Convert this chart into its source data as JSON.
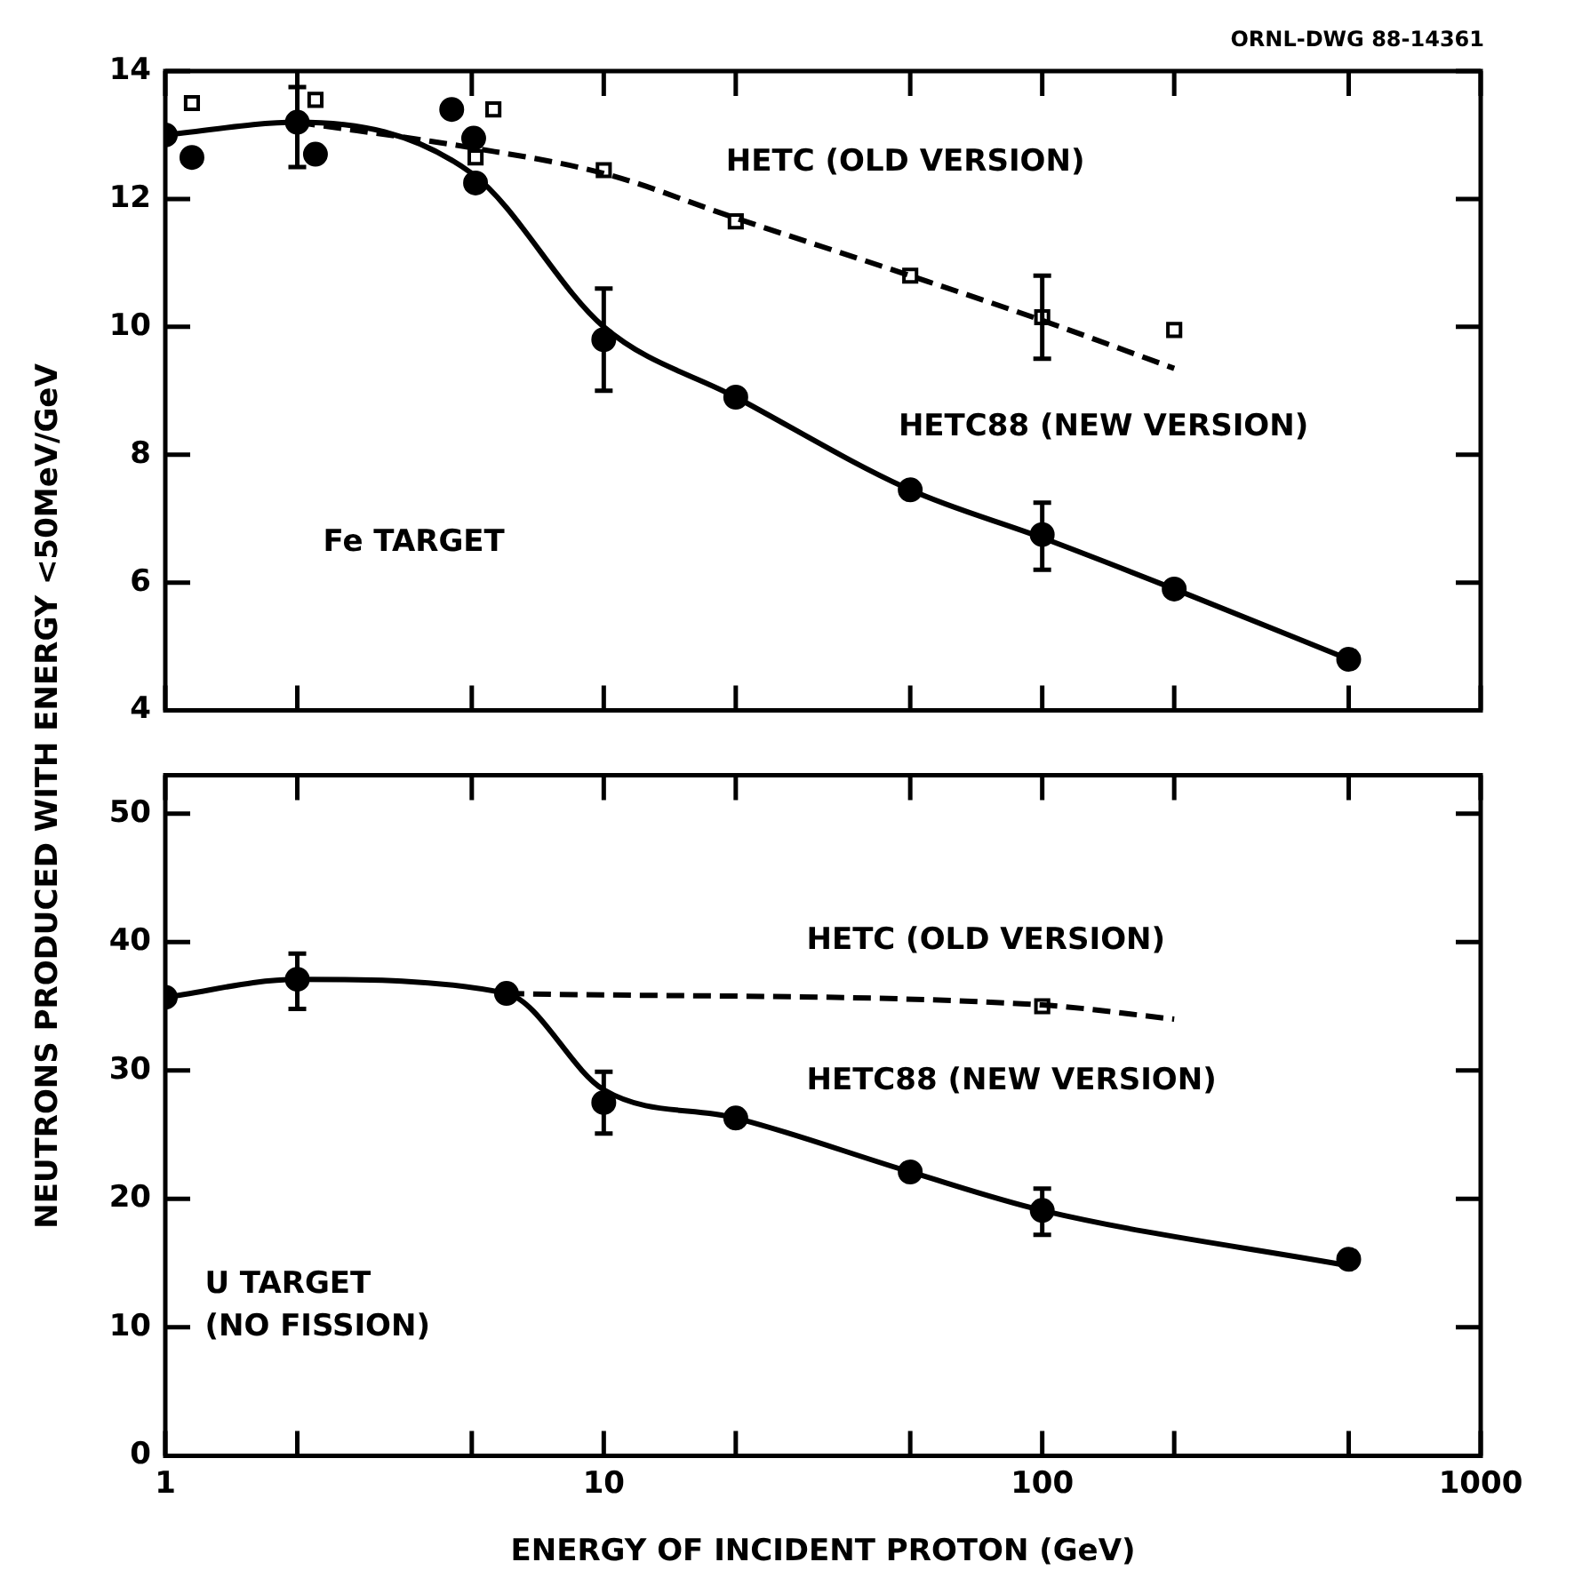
{
  "chart_data": [
    {
      "type": "line",
      "ylabel": "NEUTRONS PRODUCED WITH ENERGY <50MeV/GeV",
      "annotations": [
        "ORNL-DWG 88-14361",
        "Fe TARGET"
      ],
      "xlim": [
        1,
        1000
      ],
      "xticks": [
        1,
        {
          "value": 2,
          "label": null
        },
        {
          "value": 5,
          "label": null
        },
        10,
        {
          "value": 20,
          "label": null
        },
        {
          "value": 50,
          "label": null
        },
        100,
        {
          "value": 200,
          "label": null
        },
        {
          "value": 500,
          "label": null
        },
        1000
      ],
      "ylim": [
        4,
        14
      ],
      "yticks": [
        4,
        6,
        8,
        10,
        12,
        14
      ],
      "log": "x",
      "grid": false,
      "legend": false,
      "tick_labels": "y",
      "series": [
        {
          "name": "HETC (OLD VERSION)",
          "color": "#000000",
          "line_style": "dashed",
          "marker": "none",
          "x": [
            2,
            5,
            10,
            20,
            50,
            100,
            200
          ],
          "values": [
            13.2,
            12.8,
            12.4,
            11.7,
            10.8,
            10.1,
            9.35
          ]
        },
        {
          "type": "scatter",
          "color": "#000000",
          "marker": "square",
          "x": [
            1.15,
            2.2,
            5.6,
            5.1,
            10,
            20,
            50,
            100,
            200
          ],
          "values": [
            13.5,
            13.55,
            13.4,
            12.65,
            12.45,
            11.65,
            10.8,
            10.15,
            9.95
          ],
          "errors": [
            null,
            null,
            null,
            null,
            null,
            null,
            null,
            [
              9.5,
              10.8
            ],
            null
          ]
        },
        {
          "name": "HETC88 (NEW VERSION)",
          "color": "#000000",
          "line_style": "solid",
          "marker": "none",
          "x": [
            1,
            2,
            5,
            10,
            20,
            50,
            100,
            200,
            500
          ],
          "values": [
            13.0,
            13.2,
            12.4,
            10.0,
            8.9,
            7.45,
            6.7,
            5.9,
            4.8
          ]
        },
        {
          "type": "scatter",
          "color": "#000000",
          "marker": "circle",
          "x": [
            1.15,
            2.2,
            4.5,
            5.1,
            10,
            20,
            50,
            100,
            200,
            500
          ],
          "values": [
            12.65,
            12.7,
            13.4,
            12.25,
            9.8,
            8.9,
            7.45,
            6.75,
            5.9,
            4.8
          ],
          "errors": [
            null,
            null,
            null,
            null,
            [
              9.0,
              10.6
            ],
            null,
            null,
            [
              6.2,
              7.25
            ],
            null,
            null
          ]
        },
        {
          "type": "scatter",
          "color": "#000000",
          "marker": "circle",
          "x": [
            1,
            2,
            5.05
          ],
          "values": [
            13.0,
            13.2,
            12.95
          ],
          "errors": [
            null,
            [
              12.5,
              13.75
            ],
            null
          ]
        }
      ]
    },
    {
      "type": "line",
      "xlabel": "ENERGY OF INCIDENT PROTON (GeV)",
      "annotations": [
        "U TARGET\n(NO FISSION)"
      ],
      "xlim": [
        1,
        1000
      ],
      "xticks": [
        1,
        {
          "value": 2,
          "label": null
        },
        {
          "value": 5,
          "label": null
        },
        10,
        {
          "value": 20,
          "label": null
        },
        {
          "value": 50,
          "label": null
        },
        100,
        {
          "value": 200,
          "label": null
        },
        {
          "value": 500,
          "label": null
        },
        1000
      ],
      "ylim": [
        0,
        53
      ],
      "yticks": [
        0,
        10,
        20,
        30,
        40,
        50
      ],
      "log": "x",
      "grid": false,
      "legend": false,
      "series": [
        {
          "name": "HETC (OLD VERSION)",
          "color": "#000000",
          "line_style": "dashed",
          "marker": "none",
          "x": [
            6,
            100,
            200
          ],
          "values": [
            36.0,
            35.1,
            34.0
          ]
        },
        {
          "type": "scatter",
          "color": "#000000",
          "marker": "square",
          "x": [
            100
          ],
          "values": [
            35.0
          ]
        },
        {
          "name": "HETC88 (NEW VERSION)",
          "color": "#000000",
          "line_style": "solid",
          "marker": "none",
          "x": [
            1,
            2,
            6,
            10,
            20,
            50,
            100,
            500
          ],
          "values": [
            35.7,
            37.1,
            36.0,
            28.5,
            26.3,
            22.1,
            19.1,
            14.8
          ]
        },
        {
          "type": "scatter",
          "color": "#000000",
          "marker": "circle",
          "x": [
            1,
            2,
            6,
            10,
            20,
            50,
            100,
            500
          ],
          "values": [
            35.7,
            37.1,
            36.0,
            27.5,
            26.3,
            22.1,
            19.1,
            15.3
          ],
          "errors": [
            null,
            [
              34.8,
              39.1
            ],
            null,
            [
              25.1,
              29.9
            ],
            null,
            null,
            [
              17.2,
              20.8
            ],
            null
          ]
        }
      ]
    }
  ]
}
